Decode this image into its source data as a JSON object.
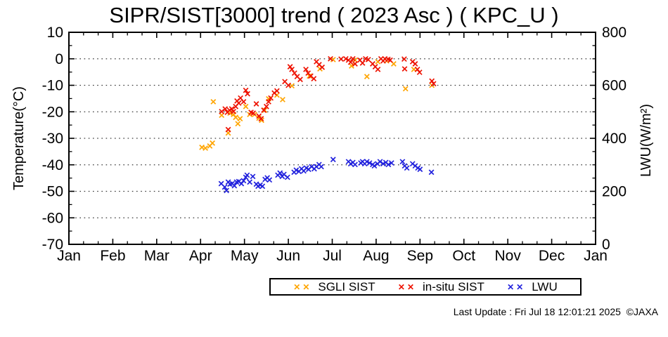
{
  "page": {
    "title": "SIPR/SIST[3000] trend ( 2023 Asc ) ( KPC_U )",
    "footer": "Last Update : Fri Jul 18 12:01:21 2025  ©JAXA"
  },
  "legend": {
    "items": [
      {
        "label": "SGLI SIST",
        "color": "#ffa500"
      },
      {
        "label": "in-situ SIST",
        "color": "#ee1100"
      },
      {
        "label": "LWU",
        "color": "#2222dd"
      }
    ]
  },
  "chart_data": {
    "type": "scatter",
    "title": "SIPR/SIST[3000] trend ( 2023 Asc ) ( KPC_U )",
    "marker": "x",
    "grid": "dotted-horizontal",
    "legend_position": "below",
    "x_axis": {
      "range": [
        0,
        12
      ],
      "tick_labels": [
        "Jan",
        "Feb",
        "Mar",
        "Apr",
        "May",
        "Jun",
        "Jul",
        "Aug",
        "Sep",
        "Oct",
        "Nov",
        "Dec",
        "Jan"
      ],
      "minor_ticks_per_month": 2
    },
    "y_left": {
      "label": "Temperature(°C)",
      "range": [
        -70,
        10
      ],
      "major_step": 10,
      "minor_step": 5,
      "tick_labels": [
        "10",
        "0",
        "-10",
        "-20",
        "-30",
        "-40",
        "-50",
        "-60",
        "-70"
      ]
    },
    "y_right": {
      "label": "LWU(W/m²)",
      "range": [
        0,
        800
      ],
      "major_step": 200,
      "minor_step": 50,
      "tick_labels": [
        "800",
        "600",
        "400",
        "200",
        "0"
      ]
    },
    "grid_left_values": [
      0,
      -10,
      -20,
      -30,
      -40,
      -50,
      -60
    ],
    "series": [
      {
        "name": "SGLI SIST",
        "axis": "left",
        "units": "degC",
        "color": "#ffa500",
        "points": [
          [
            3.03,
            -33.4
          ],
          [
            3.11,
            -33.7
          ],
          [
            3.21,
            -32.9
          ],
          [
            3.27,
            -31.8
          ],
          [
            3.29,
            -16.2
          ],
          [
            3.48,
            -21.3
          ],
          [
            3.63,
            -28.0
          ],
          [
            3.67,
            -20.5
          ],
          [
            3.75,
            -21.0
          ],
          [
            3.8,
            -22.1
          ],
          [
            3.85,
            -24.5
          ],
          [
            3.9,
            -22.6
          ],
          [
            4.03,
            -18.0
          ],
          [
            4.12,
            -21.0
          ],
          [
            4.23,
            -21.0
          ],
          [
            4.33,
            -22.4
          ],
          [
            4.39,
            -23.2
          ],
          [
            4.46,
            -19.4
          ],
          [
            4.55,
            -15.1
          ],
          [
            4.74,
            -13.7
          ],
          [
            4.87,
            -15.4
          ],
          [
            5.08,
            -10.2
          ],
          [
            5.48,
            -6.5
          ],
          [
            5.72,
            -3.8
          ],
          [
            6.02,
            -0.3
          ],
          [
            6.44,
            -2.7
          ],
          [
            6.52,
            -0.5
          ],
          [
            6.79,
            -6.7
          ],
          [
            7.04,
            -1.1
          ],
          [
            7.24,
            -0.8
          ],
          [
            7.4,
            -1.9
          ],
          [
            7.67,
            -11.3
          ],
          [
            7.86,
            -4.0
          ],
          [
            8.27,
            -10.0
          ]
        ]
      },
      {
        "name": "in-situ SIST",
        "axis": "left",
        "units": "degC",
        "color": "#ee1100",
        "points": [
          [
            3.48,
            -19.9
          ],
          [
            3.56,
            -18.9
          ],
          [
            3.61,
            -20.2
          ],
          [
            3.63,
            -26.7
          ],
          [
            3.66,
            -19.4
          ],
          [
            3.71,
            -18.9
          ],
          [
            3.75,
            -19.9
          ],
          [
            3.8,
            -18.0
          ],
          [
            3.83,
            -15.9
          ],
          [
            3.87,
            -16.7
          ],
          [
            3.91,
            -14.8
          ],
          [
            3.98,
            -16.2
          ],
          [
            4.03,
            -11.9
          ],
          [
            4.07,
            -13.2
          ],
          [
            4.15,
            -20.2
          ],
          [
            4.2,
            -20.5
          ],
          [
            4.27,
            -17.0
          ],
          [
            4.33,
            -21.6
          ],
          [
            4.38,
            -22.6
          ],
          [
            4.44,
            -19.4
          ],
          [
            4.5,
            -18.0
          ],
          [
            4.55,
            -16.2
          ],
          [
            4.6,
            -14.8
          ],
          [
            4.68,
            -12.9
          ],
          [
            4.74,
            -12.1
          ],
          [
            4.92,
            -8.6
          ],
          [
            5.0,
            -10.0
          ],
          [
            5.04,
            -3.0
          ],
          [
            5.08,
            -4.0
          ],
          [
            5.14,
            -5.4
          ],
          [
            5.2,
            -6.7
          ],
          [
            5.27,
            -7.8
          ],
          [
            5.4,
            -4.0
          ],
          [
            5.45,
            -5.4
          ],
          [
            5.51,
            -6.5
          ],
          [
            5.58,
            -7.5
          ],
          [
            5.64,
            -1.1
          ],
          [
            5.7,
            -2.2
          ],
          [
            5.77,
            -3.2
          ],
          [
            5.96,
            0.0
          ],
          [
            6.2,
            -0.1
          ],
          [
            6.31,
            0.0
          ],
          [
            6.37,
            -0.5
          ],
          [
            6.42,
            -1.3
          ],
          [
            6.47,
            0.0
          ],
          [
            6.52,
            -1.9
          ],
          [
            6.63,
            -0.5
          ],
          [
            6.69,
            -1.6
          ],
          [
            6.76,
            0.0
          ],
          [
            6.82,
            -0.3
          ],
          [
            6.92,
            -1.9
          ],
          [
            6.98,
            -3.0
          ],
          [
            7.04,
            -4.0
          ],
          [
            7.11,
            0.0
          ],
          [
            7.16,
            -0.8
          ],
          [
            7.2,
            0.0
          ],
          [
            7.27,
            -0.2
          ],
          [
            7.32,
            -0.5
          ],
          [
            7.64,
            -0.1
          ],
          [
            7.65,
            -3.8
          ],
          [
            7.83,
            -1.1
          ],
          [
            7.89,
            -1.9
          ],
          [
            7.94,
            -4.0
          ],
          [
            7.99,
            -5.1
          ],
          [
            8.27,
            -8.4
          ],
          [
            8.31,
            -9.4
          ]
        ]
      },
      {
        "name": "LWU",
        "axis": "right",
        "units": "W/m2",
        "color": "#2222dd",
        "points": [
          [
            3.47,
            229
          ],
          [
            3.55,
            216
          ],
          [
            3.59,
            203
          ],
          [
            3.63,
            235
          ],
          [
            3.67,
            227
          ],
          [
            3.72,
            229
          ],
          [
            3.77,
            221
          ],
          [
            3.82,
            235
          ],
          [
            3.87,
            237
          ],
          [
            3.93,
            229
          ],
          [
            3.98,
            240
          ],
          [
            4.03,
            253
          ],
          [
            4.06,
            261
          ],
          [
            4.12,
            235
          ],
          [
            4.19,
            256
          ],
          [
            4.27,
            227
          ],
          [
            4.31,
            219
          ],
          [
            4.36,
            224
          ],
          [
            4.41,
            219
          ],
          [
            4.47,
            245
          ],
          [
            4.52,
            251
          ],
          [
            4.57,
            243
          ],
          [
            4.76,
            261
          ],
          [
            4.81,
            269
          ],
          [
            4.86,
            256
          ],
          [
            4.9,
            264
          ],
          [
            4.98,
            253
          ],
          [
            5.13,
            272
          ],
          [
            5.18,
            280
          ],
          [
            5.24,
            275
          ],
          [
            5.3,
            285
          ],
          [
            5.35,
            277
          ],
          [
            5.41,
            288
          ],
          [
            5.46,
            283
          ],
          [
            5.53,
            293
          ],
          [
            5.59,
            285
          ],
          [
            5.64,
            293
          ],
          [
            5.7,
            301
          ],
          [
            5.75,
            293
          ],
          [
            6.02,
            320
          ],
          [
            6.37,
            312
          ],
          [
            6.42,
            304
          ],
          [
            6.47,
            309
          ],
          [
            6.52,
            301
          ],
          [
            6.65,
            307
          ],
          [
            6.69,
            312
          ],
          [
            6.74,
            304
          ],
          [
            6.79,
            312
          ],
          [
            6.85,
            307
          ],
          [
            6.92,
            301
          ],
          [
            6.96,
            296
          ],
          [
            7.03,
            304
          ],
          [
            7.09,
            312
          ],
          [
            7.16,
            304
          ],
          [
            7.22,
            309
          ],
          [
            7.28,
            301
          ],
          [
            7.35,
            307
          ],
          [
            7.6,
            312
          ],
          [
            7.65,
            296
          ],
          [
            7.7,
            288
          ],
          [
            7.83,
            304
          ],
          [
            7.89,
            296
          ],
          [
            7.95,
            288
          ],
          [
            8.0,
            283
          ],
          [
            8.26,
            272
          ]
        ]
      }
    ]
  }
}
